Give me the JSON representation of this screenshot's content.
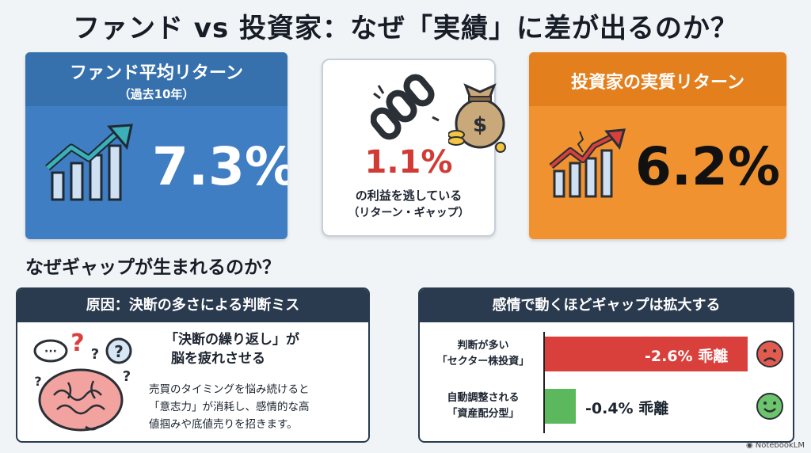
{
  "title": "ファンド vs 投資家：なぜ「実績」に差が出るのか？",
  "fund_card": {
    "title": "ファンド平均リターン",
    "subtitle": "（過去10年）",
    "value": "7.3%",
    "icon": "bar-chart-up-icon",
    "color": "#3f7ec2"
  },
  "gap_card": {
    "value": "1.1%",
    "line1": "の利益を逃している",
    "line2": "（リターン・ギャップ）",
    "icons": [
      "broken-chain-icon",
      "money-bag-icon"
    ],
    "color": "#d23a36"
  },
  "investor_card": {
    "title": "投資家の実質リターン",
    "value": "6.2%",
    "icon": "cracked-bar-chart-icon",
    "color": "#f0922f"
  },
  "section_title": "なぜギャップが生まれるのか？",
  "cause_panel": {
    "header": "原因：決断の多さによる判断ミス",
    "quote_line1": "「決断の繰り返し」が",
    "quote_line2": "脳を疲れさせる",
    "body_line1": "売買のタイミングを悩み続けると",
    "body_line2": "「意志力」が消耗し、感情的な高",
    "body_line3": "値掴みや底値売りを招きます。",
    "icon": "brain-question-icon"
  },
  "emotion_panel": {
    "header": "感情で動くほどギャップは拡大する",
    "rows": [
      {
        "label1": "判断が多い",
        "label2": "「セクター株投資」",
        "value": -2.6,
        "text": "-2.6% 乖離",
        "face": "sad-face-icon",
        "color": "#d9403c"
      },
      {
        "label1": "自動調整される",
        "label2": "「資産配分型」",
        "value": -0.4,
        "text": "-0.4% 乖離",
        "face": "happy-face-icon",
        "color": "#5cb85c"
      }
    ]
  },
  "footer": "NotebookLM"
}
